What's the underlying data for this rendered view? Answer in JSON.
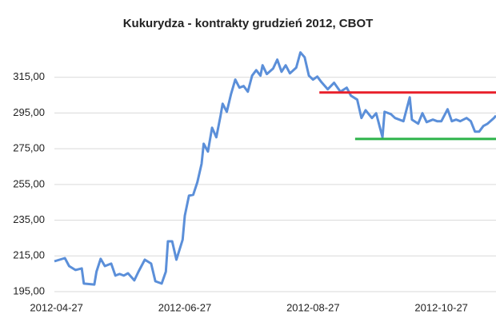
{
  "chart_data": {
    "type": "line",
    "title": "Kukurydza - kontrakty grudzień 2012, CBOT",
    "color": "#5b8fd9",
    "x": [
      "2012-04-26",
      "2012-05-01",
      "2012-05-03",
      "2012-05-06",
      "2012-05-09",
      "2012-05-10",
      "2012-05-15",
      "2012-05-16",
      "2012-05-18",
      "2012-05-20",
      "2012-05-23",
      "2012-05-25",
      "2012-05-27",
      "2012-05-29",
      "2012-05-31",
      "2012-06-03",
      "2012-06-05",
      "2012-06-08",
      "2012-06-11",
      "2012-06-13",
      "2012-06-16",
      "2012-06-18",
      "2012-06-19",
      "2012-06-21",
      "2012-06-23",
      "2012-06-26",
      "2012-06-27",
      "2012-06-29",
      "2012-07-01",
      "2012-07-03",
      "2012-07-05",
      "2012-07-06",
      "2012-07-08",
      "2012-07-10",
      "2012-07-12",
      "2012-07-14",
      "2012-07-15",
      "2012-07-17",
      "2012-07-19",
      "2012-07-21",
      "2012-07-23",
      "2012-07-25",
      "2012-07-27",
      "2012-07-29",
      "2012-07-31",
      "2012-08-02",
      "2012-08-03",
      "2012-08-05",
      "2012-08-08",
      "2012-08-10",
      "2012-08-12",
      "2012-08-14",
      "2012-08-16",
      "2012-08-19",
      "2012-08-21",
      "2012-08-23",
      "2012-08-25",
      "2012-08-27",
      "2012-08-29",
      "2012-08-31",
      "2012-09-03",
      "2012-09-06",
      "2012-09-09",
      "2012-09-12",
      "2012-09-14",
      "2012-09-17",
      "2012-09-19",
      "2012-09-21",
      "2012-09-24",
      "2012-09-26",
      "2012-09-29",
      "2012-09-30",
      "2012-10-03",
      "2012-10-05",
      "2012-10-07",
      "2012-10-09",
      "2012-10-12",
      "2012-10-13",
      "2012-10-16",
      "2012-10-18",
      "2012-10-20",
      "2012-10-23",
      "2012-10-25",
      "2012-10-27",
      "2012-10-30",
      "2012-11-01",
      "2012-11-03",
      "2012-11-05",
      "2012-11-08",
      "2012-11-10",
      "2012-11-12",
      "2012-11-14",
      "2012-11-16",
      "2012-11-18",
      "2012-11-21",
      "2012-11-22"
    ],
    "values": [
      212.0,
      213.8,
      209.3,
      207.1,
      208.0,
      199.5,
      199.0,
      206.2,
      213.4,
      209.3,
      210.7,
      204.0,
      204.9,
      204.0,
      205.3,
      201.3,
      206.2,
      212.9,
      210.7,
      200.8,
      199.5,
      206.2,
      223.2,
      223.2,
      212.9,
      224.1,
      237.5,
      248.7,
      249.2,
      256.3,
      266.6,
      277.8,
      273.4,
      286.8,
      281.4,
      293.5,
      300.2,
      295.7,
      305.6,
      313.7,
      309.2,
      310.1,
      306.9,
      315.9,
      319.0,
      315.9,
      321.7,
      316.8,
      319.9,
      324.9,
      318.1,
      321.7,
      317.2,
      320.4,
      328.9,
      326.2,
      315.9,
      313.7,
      315.4,
      312.3,
      308.3,
      311.9,
      306.9,
      309.2,
      304.7,
      302.5,
      292.2,
      296.6,
      292.2,
      294.9,
      281.4,
      295.7,
      294.4,
      292.2,
      291.3,
      290.4,
      303.8,
      291.3,
      289.0,
      294.9,
      289.9,
      291.3,
      290.4,
      290.4,
      297.1,
      290.4,
      291.3,
      290.4,
      292.2,
      290.4,
      284.6,
      284.6,
      287.7,
      289.0,
      292.2,
      293.5
    ],
    "xlim": [
      "2012-04-26",
      "2012-11-22"
    ],
    "xticks": [
      "2012-04-27",
      "2012-06-27",
      "2012-08-27",
      "2012-10-27"
    ],
    "ylim": [
      195,
      335
    ],
    "yticks": [
      {
        "value": 195,
        "label": "195,00"
      },
      {
        "value": 215,
        "label": "215,00"
      },
      {
        "value": 235,
        "label": "235,00"
      },
      {
        "value": 255,
        "label": "255,00"
      },
      {
        "value": 275,
        "label": "275,00"
      },
      {
        "value": 295,
        "label": "295,00"
      },
      {
        "value": 315,
        "label": "315,00"
      }
    ],
    "grid": true,
    "reference_lines": [
      {
        "value": 306.5,
        "x": [
          "2012-08-30",
          "2012-11-22"
        ],
        "color": "#e8202a"
      },
      {
        "value": 280.5,
        "x": [
          "2012-09-16",
          "2012-11-22"
        ],
        "color": "#2db34a"
      }
    ]
  }
}
